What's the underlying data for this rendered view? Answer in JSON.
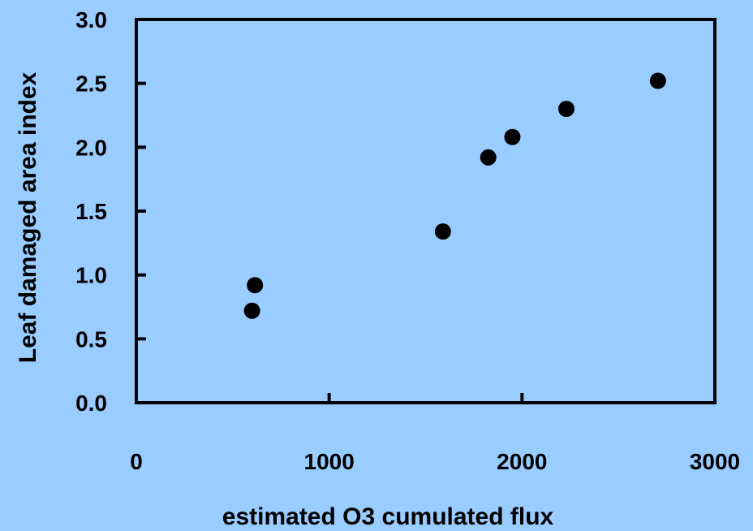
{
  "colors": {
    "background": "#99ccff",
    "axis": "#000000",
    "marker": "#000000"
  },
  "chart_data": {
    "type": "scatter",
    "title": "",
    "xlabel": "estimated O3 cumulated flux",
    "ylabel": "Leaf damaged area index",
    "xlim": [
      0,
      3000
    ],
    "ylim": [
      0,
      3.0
    ],
    "xticks": [
      "0",
      "1000",
      "2000",
      "3000"
    ],
    "yticks": [
      "0.0",
      "0.5",
      "1.0",
      "1.5",
      "2.0",
      "2.5",
      "3.0"
    ],
    "xtick_values": [
      0,
      1000,
      2000,
      3000
    ],
    "ytick_values": [
      0,
      0.5,
      1.0,
      1.5,
      2.0,
      2.5,
      3.0
    ],
    "grid": false,
    "legend": "none",
    "points": [
      {
        "x": 600,
        "y": 0.72
      },
      {
        "x": 615,
        "y": 0.92
      },
      {
        "x": 1590,
        "y": 1.34
      },
      {
        "x": 1825,
        "y": 1.92
      },
      {
        "x": 1950,
        "y": 2.08
      },
      {
        "x": 2230,
        "y": 2.3
      },
      {
        "x": 2705,
        "y": 2.52
      }
    ]
  }
}
